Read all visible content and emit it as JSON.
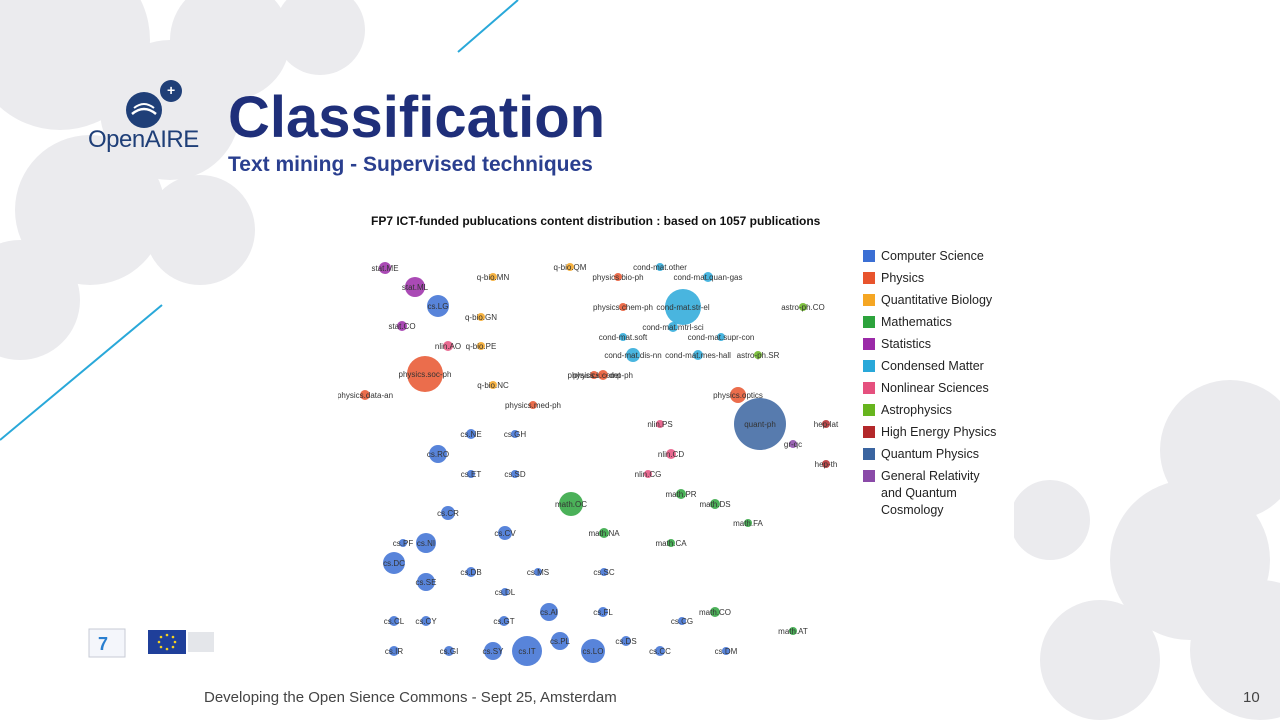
{
  "brand": {
    "logo_text_1": "Open",
    "logo_text_2": "AIRE",
    "plus": "+"
  },
  "slide": {
    "title": "Classification",
    "subtitle": "Text mining - Supervised techniques",
    "footer": "Developing the Open Sience Commons - Sept 25, Amsterdam",
    "page_number": "10"
  },
  "figure": {
    "title": "FP7 ICT-funded publucations content distribution : based on 1057 publications",
    "legend": [
      {
        "label": "Computer Science",
        "color": "#3b6fd4"
      },
      {
        "label": "Physics",
        "color": "#e8542d"
      },
      {
        "label": "Quantitative Biology",
        "color": "#f5a623"
      },
      {
        "label": "Mathematics",
        "color": "#2ca33c"
      },
      {
        "label": "Statistics",
        "color": "#9b2aa8"
      },
      {
        "label": "Condensed Matter",
        "color": "#29a8d9"
      },
      {
        "label": "Nonlinear Sciences",
        "color": "#e5507e"
      },
      {
        "label": "Astrophysics",
        "color": "#67b51e"
      },
      {
        "label": "High Energy Physics",
        "color": "#b3282a"
      },
      {
        "label": "Quantum Physics",
        "color": "#3a64a0"
      },
      {
        "label": "General Relativity and Quantum Cosmology",
        "color": "#8a4aa8"
      }
    ],
    "nodes": [
      {
        "label": "stat.ME",
        "cat": 4,
        "r": 6
      },
      {
        "label": "stat.ML",
        "cat": 4,
        "r": 10
      },
      {
        "label": "cs.LG",
        "cat": 0,
        "r": 11
      },
      {
        "label": "stat.CO",
        "cat": 4,
        "r": 5
      },
      {
        "label": "q-bio.MN",
        "cat": 2,
        "r": 4
      },
      {
        "label": "q-bio.GN",
        "cat": 2,
        "r": 4
      },
      {
        "label": "nlin.AO",
        "cat": 6,
        "r": 5
      },
      {
        "label": "q-bio.PE",
        "cat": 2,
        "r": 4
      },
      {
        "label": "physics.soc-ph",
        "cat": 1,
        "r": 18
      },
      {
        "label": "q-bio.NC",
        "cat": 2,
        "r": 4
      },
      {
        "label": "physics.data-an",
        "cat": 1,
        "r": 5
      },
      {
        "label": "physics.med-ph",
        "cat": 1,
        "r": 4
      },
      {
        "label": "q-bio.QM",
        "cat": 2,
        "r": 4
      },
      {
        "label": "cond-mat.other",
        "cat": 5,
        "r": 4
      },
      {
        "label": "physics.bio-ph",
        "cat": 1,
        "r": 4
      },
      {
        "label": "cond-mat.quan-gas",
        "cat": 5,
        "r": 5
      },
      {
        "label": "physics.chem-ph",
        "cat": 1,
        "r": 4
      },
      {
        "label": "cond-mat.str-el",
        "cat": 5,
        "r": 18
      },
      {
        "label": "cond-mat.mtrl-sci",
        "cat": 5,
        "r": 5
      },
      {
        "label": "cond-mat.soft",
        "cat": 5,
        "r": 4
      },
      {
        "label": "cond-mat.supr-con",
        "cat": 5,
        "r": 4
      },
      {
        "label": "cond-mat.dis-nn",
        "cat": 5,
        "r": 7
      },
      {
        "label": "cond-mat.mes-hall",
        "cat": 5,
        "r": 5
      },
      {
        "label": "astro-ph.CO",
        "cat": 7,
        "r": 4
      },
      {
        "label": "astro-ph.SR",
        "cat": 7,
        "r": 4
      },
      {
        "label": "physics.ins-det",
        "cat": 1,
        "r": 4
      },
      {
        "label": "physics.comp-ph",
        "cat": 1,
        "r": 5
      },
      {
        "label": "physics.optics",
        "cat": 1,
        "r": 8
      },
      {
        "label": "quant-ph",
        "cat": 9,
        "r": 26
      },
      {
        "label": "hep-lat",
        "cat": 8,
        "r": 4
      },
      {
        "label": "gr-qc",
        "cat": 10,
        "r": 4
      },
      {
        "label": "hep-th",
        "cat": 8,
        "r": 4
      },
      {
        "label": "nlin.PS",
        "cat": 6,
        "r": 4
      },
      {
        "label": "nlin.CD",
        "cat": 6,
        "r": 5
      },
      {
        "label": "nlin.CG",
        "cat": 6,
        "r": 4
      },
      {
        "label": "cs.NE",
        "cat": 0,
        "r": 5
      },
      {
        "label": "cs.GH",
        "cat": 0,
        "r": 4
      },
      {
        "label": "cs.RO",
        "cat": 0,
        "r": 9
      },
      {
        "label": "cs.ET",
        "cat": 0,
        "r": 4
      },
      {
        "label": "cs.SD",
        "cat": 0,
        "r": 4
      },
      {
        "label": "math.PR",
        "cat": 3,
        "r": 5
      },
      {
        "label": "math.DS",
        "cat": 3,
        "r": 5
      },
      {
        "label": "math.OC",
        "cat": 3,
        "r": 12
      },
      {
        "label": "math.FA",
        "cat": 3,
        "r": 4
      },
      {
        "label": "cs.CR",
        "cat": 0,
        "r": 7
      },
      {
        "label": "cs.CV",
        "cat": 0,
        "r": 7
      },
      {
        "label": "math.NA",
        "cat": 3,
        "r": 5
      },
      {
        "label": "math.CA",
        "cat": 3,
        "r": 4
      },
      {
        "label": "cs.PF",
        "cat": 0,
        "r": 4
      },
      {
        "label": "cs.NI",
        "cat": 0,
        "r": 10
      },
      {
        "label": "cs.DC",
        "cat": 0,
        "r": 11
      },
      {
        "label": "cs.DB",
        "cat": 0,
        "r": 5
      },
      {
        "label": "cs.MS",
        "cat": 0,
        "r": 4
      },
      {
        "label": "cs.SC",
        "cat": 0,
        "r": 4
      },
      {
        "label": "cs.SE",
        "cat": 0,
        "r": 9
      },
      {
        "label": "cs.DL",
        "cat": 0,
        "r": 4
      },
      {
        "label": "cs.AI",
        "cat": 0,
        "r": 9
      },
      {
        "label": "cs.FL",
        "cat": 0,
        "r": 5
      },
      {
        "label": "math.CO",
        "cat": 3,
        "r": 5
      },
      {
        "label": "cs.CL",
        "cat": 0,
        "r": 5
      },
      {
        "label": "cs.CY",
        "cat": 0,
        "r": 5
      },
      {
        "label": "cs.GT",
        "cat": 0,
        "r": 5
      },
      {
        "label": "cs.CG",
        "cat": 0,
        "r": 4
      },
      {
        "label": "math.AT",
        "cat": 3,
        "r": 4
      },
      {
        "label": "cs.PL",
        "cat": 0,
        "r": 9
      },
      {
        "label": "cs.DS",
        "cat": 0,
        "r": 5
      },
      {
        "label": "cs.IR",
        "cat": 0,
        "r": 5
      },
      {
        "label": "cs.GI",
        "cat": 0,
        "r": 5
      },
      {
        "label": "cs.SY",
        "cat": 0,
        "r": 9
      },
      {
        "label": "cs.IT",
        "cat": 0,
        "r": 15
      },
      {
        "label": "cs.LO",
        "cat": 0,
        "r": 12
      },
      {
        "label": "cs.CC",
        "cat": 0,
        "r": 5
      },
      {
        "label": "cs.DM",
        "cat": 0,
        "r": 4
      }
    ]
  },
  "colors": {
    "accent": "#29a8d9",
    "title": "#1f2f7a",
    "bg_blobs": "#e9e9ec"
  }
}
